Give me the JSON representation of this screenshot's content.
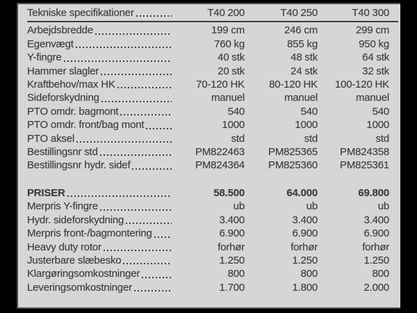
{
  "colors": {
    "page_bg": "#000000",
    "panel_bg": "#d6d6d6",
    "panel_border": "#4c4c4c",
    "text": "#3c3c3c"
  },
  "table": {
    "header": {
      "title": "Tekniske specifikationer",
      "columns": [
        "T40 200",
        "T40 250",
        "T40 300"
      ]
    },
    "spec_rows": [
      {
        "label": "Arbejdsbredde",
        "values": [
          "199 cm",
          "246 cm",
          "299 cm"
        ]
      },
      {
        "label": "Egenvægt",
        "values": [
          "760 kg",
          "855 kg",
          "950 kg"
        ]
      },
      {
        "label": "Y-fingre",
        "values": [
          "40 stk",
          "48 stk",
          "64 stk"
        ]
      },
      {
        "label": "Hammer slagler",
        "values": [
          "20 stk",
          "24 stk",
          "32 stk"
        ]
      },
      {
        "label": "Kraftbehov/max HK",
        "values": [
          "70-120 HK",
          "80-120 HK",
          "100-120 HK"
        ]
      },
      {
        "label": "Sideforskydning",
        "values": [
          "manuel",
          "manuel",
          "manuel"
        ]
      },
      {
        "label": "PTO omdr. bagmont",
        "values": [
          "540",
          "540",
          "540"
        ]
      },
      {
        "label": "PTO omdr. front/bag mont",
        "values": [
          "1000",
          "1000",
          "1000"
        ]
      },
      {
        "label": "PTO aksel",
        "values": [
          "std",
          "std",
          "std"
        ]
      },
      {
        "label": "Bestillingsnr std",
        "values": [
          "PM822463",
          "PM825365",
          "PM824358"
        ]
      },
      {
        "label": "Bestillingsnr hydr. sidef",
        "values": [
          "PM824364",
          "PM825360",
          "PM825361"
        ]
      }
    ],
    "price_rows": [
      {
        "label": "PRISER",
        "values": [
          "58.500",
          "64.000",
          "69.800"
        ],
        "bold": true
      },
      {
        "label": "Merpris Y-fingre",
        "values": [
          "ub",
          "ub",
          "ub"
        ]
      },
      {
        "label": "Hydr. sideforskydning",
        "values": [
          "3.400",
          "3.400",
          "3.400"
        ]
      },
      {
        "label": "Merpris front-/bagmontering",
        "values": [
          "6.900",
          "6.900",
          "6.900"
        ]
      },
      {
        "label": "Heavy duty rotor",
        "values": [
          "forhør",
          "forhør",
          "forhør"
        ]
      },
      {
        "label": "Justerbare slæbesko",
        "values": [
          "1.250",
          "1.250",
          "1.250"
        ]
      },
      {
        "label": "Klargøringsomkostninger",
        "values": [
          "800",
          "800",
          "800"
        ]
      },
      {
        "label": "Leveringsomkostninger",
        "values": [
          "1.700",
          "1.800",
          "2.000"
        ]
      }
    ]
  }
}
